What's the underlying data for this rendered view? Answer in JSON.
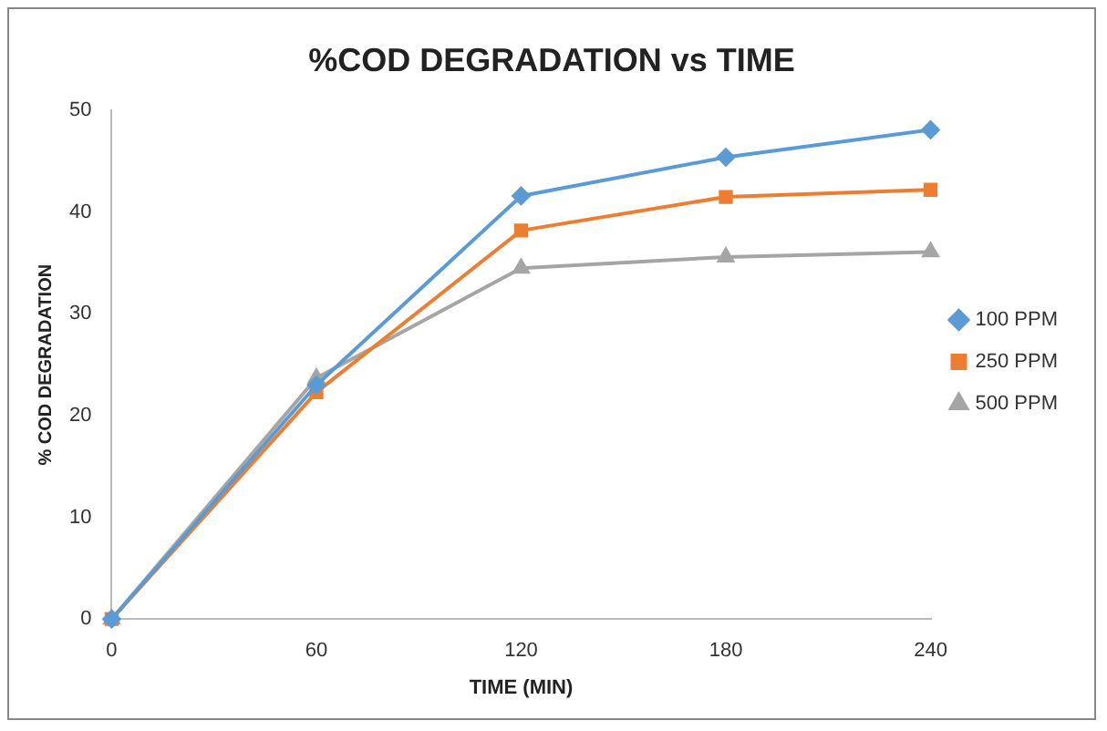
{
  "chart_data": {
    "type": "line",
    "title": "%COD DEGRADATION vs TIME",
    "xlabel": "TIME (MIN)",
    "ylabel": "% COD DEGRADATION",
    "x": [
      0,
      60,
      120,
      180,
      240
    ],
    "xlim": [
      0,
      240
    ],
    "xticks": [
      0,
      60,
      120,
      180,
      240
    ],
    "ylim": [
      0,
      50
    ],
    "yticks": [
      0,
      10,
      20,
      30,
      40,
      50
    ],
    "grid": false,
    "legend": "right",
    "line_style": "solid",
    "series": [
      {
        "name": "100 PPM",
        "color": "#5b9bd5",
        "marker": "diamond",
        "values": [
          0,
          23,
          41.6,
          45.4,
          48.1
        ]
      },
      {
        "name": "250 PPM",
        "color": "#ed7d31",
        "marker": "square",
        "values": [
          0,
          22.3,
          38.2,
          41.5,
          42.2
        ]
      },
      {
        "name": "500 PPM",
        "color": "#a5a5a5",
        "marker": "triangle",
        "values": [
          0,
          23.7,
          34.5,
          35.6,
          36.1
        ]
      }
    ]
  }
}
